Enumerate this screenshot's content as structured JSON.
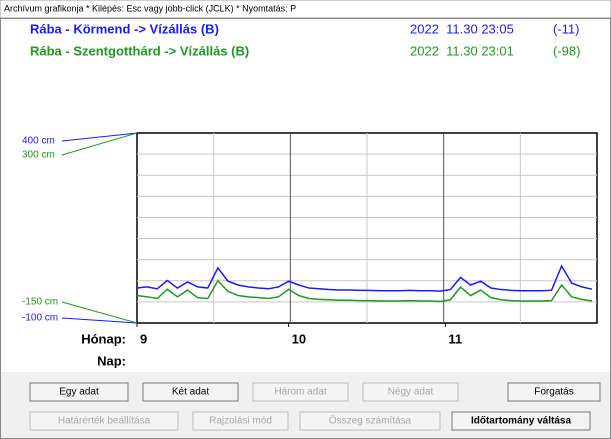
{
  "window": {
    "title": "Archívum grafikonja * Kilépés: Esc vagy jobb-click (JCLK) * Nyomtatás: P"
  },
  "chart_data": {
    "type": "line",
    "x_label": "Hónap:",
    "day_label": "Nap:",
    "x": [
      0,
      2,
      4,
      6,
      8,
      10,
      12,
      14,
      16,
      18,
      20,
      22,
      24,
      26,
      28,
      30,
      32,
      34,
      36,
      38,
      40,
      42,
      44,
      46,
      48,
      50,
      52,
      54,
      56,
      58,
      60,
      62,
      64,
      66,
      68,
      70,
      72,
      74,
      76,
      78,
      80,
      82,
      84,
      86,
      88,
      90
    ],
    "xlim": [
      0,
      91
    ],
    "xticks": [
      {
        "value": 0,
        "label": "9"
      },
      {
        "value": 30,
        "label": "10"
      },
      {
        "value": 61,
        "label": "11"
      }
    ],
    "ylim": [
      -100,
      400
    ],
    "yticks": [
      {
        "value": 400,
        "label": "400 cm"
      },
      {
        "value": -100,
        "label": "-100 cm"
      }
    ],
    "y2lim": [
      -150,
      300
    ],
    "y2ticks": [
      {
        "value": 300,
        "label": "300 cm"
      },
      {
        "value": -150,
        "label": "-150 cm"
      }
    ],
    "grid": true,
    "series": [
      {
        "name": "Rába -  Körmend -> Vízállás (B)",
        "time": "2022  11.30 23:05",
        "reading": "(-11)",
        "color": "#1a1aff",
        "values": [
          -8,
          -5,
          -10,
          12,
          -8,
          8,
          -5,
          -8,
          45,
          10,
          0,
          -5,
          -8,
          -10,
          -5,
          10,
          0,
          -8,
          -10,
          -12,
          -13,
          -13,
          -14,
          -14,
          -15,
          -15,
          -15,
          -14,
          -15,
          -15,
          -16,
          -12,
          20,
          0,
          10,
          -8,
          -12,
          -14,
          -15,
          -15,
          -15,
          -14,
          50,
          5,
          -5,
          -11
        ]
      },
      {
        "name": "Rába - Szentgotthárd -> Vízállás (B)",
        "time": "2022  11.30 23:01",
        "reading": "(-98)",
        "color": "#1e9a1e",
        "axis": "y2",
        "values": [
          -85,
          -88,
          -92,
          -70,
          -88,
          -72,
          -90,
          -92,
          -50,
          -75,
          -85,
          -88,
          -90,
          -92,
          -88,
          -70,
          -85,
          -92,
          -94,
          -95,
          -96,
          -96,
          -97,
          -97,
          -98,
          -98,
          -98,
          -97,
          -98,
          -98,
          -99,
          -95,
          -65,
          -85,
          -72,
          -90,
          -95,
          -97,
          -98,
          -98,
          -98,
          -97,
          -60,
          -88,
          -94,
          -98
        ]
      }
    ]
  },
  "buttons": [
    [
      {
        "label": "Egy adat",
        "enabled": true
      },
      {
        "label": "Két adat",
        "enabled": true
      },
      {
        "label": "Három adat",
        "enabled": false
      },
      {
        "label": "Négy adat",
        "enabled": false
      },
      {
        "label": "Forgatás",
        "enabled": true
      }
    ],
    [
      {
        "label": "Határérték beállítása",
        "enabled": false
      },
      {
        "label": "Rajzolási mód",
        "enabled": false
      },
      {
        "label": "Összeg számítása",
        "enabled": false
      },
      {
        "label": "Időtartomány váltása",
        "enabled": true
      }
    ]
  ]
}
